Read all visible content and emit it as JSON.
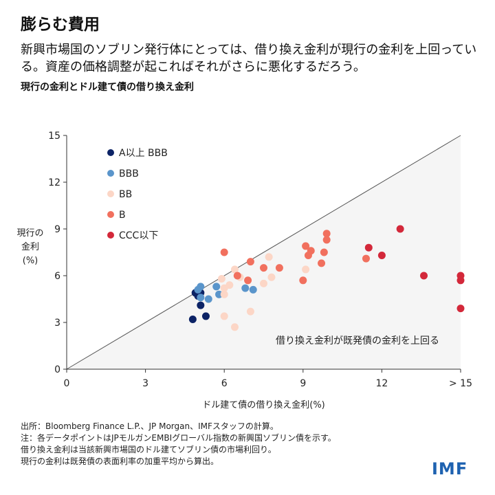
{
  "title": "膨らむ費用",
  "subtitle": "新興市場国のソブリン発行体にとっては、借り換え金利が現行の金利を上回っている。資産の価格調整が起こればそれがさらに悪化するだろう。",
  "notes": [
    "出所：Bloomberg Finance L.P.、JP Morgan、IMFスタッフの計算。",
    "注：各データポイントはJPモルガンEMBIグローバル指数の新興国ソブリン債を示す。",
    "借り換え金利は当該新興市場国のドル建てソブリン債の市場利回り。",
    "現行の金利は既発債の表面利率の加重平均から算出。"
  ],
  "logo": "IMF",
  "chart_data": {
    "type": "scatter",
    "title": "現行の金利とドル建て債の借り換え金利",
    "xlabel": "ドル建て債の借り換え金利(%)",
    "ylabel": [
      "現行の",
      "金利",
      "(%)"
    ],
    "xlim": [
      0,
      15
    ],
    "ylim": [
      0,
      15
    ],
    "xticks": [
      "0",
      "3",
      "6",
      "9",
      "12",
      "> 15"
    ],
    "yticks": [
      "0",
      "3",
      "6",
      "9",
      "12",
      "15"
    ],
    "annotation": "借り換え金利が既発債の金利を上回る",
    "reference_line": "y = x",
    "legend_position": "top-left",
    "series": [
      {
        "name": "A以上 BBB",
        "color": "#0c2366",
        "points": [
          [
            4.8,
            3.2
          ],
          [
            5.3,
            3.4
          ],
          [
            5.1,
            4.1
          ],
          [
            5.0,
            4.7
          ],
          [
            5.1,
            4.9
          ],
          [
            4.9,
            4.9
          ]
        ]
      },
      {
        "name": "BBB",
        "color": "#5a95cb",
        "points": [
          [
            5.1,
            5.3
          ],
          [
            5.0,
            5.1
          ],
          [
            5.1,
            4.6
          ],
          [
            5.4,
            4.5
          ],
          [
            5.7,
            5.3
          ],
          [
            5.8,
            4.8
          ],
          [
            6.8,
            5.2
          ],
          [
            7.1,
            5.1
          ]
        ]
      },
      {
        "name": "BB",
        "color": "#fcd6c6",
        "points": [
          [
            5.9,
            5.8
          ],
          [
            6.2,
            5.4
          ],
          [
            6.0,
            5.2
          ],
          [
            6.0,
            4.8
          ],
          [
            6.4,
            6.4
          ],
          [
            6.6,
            5.9
          ],
          [
            7.7,
            7.2
          ],
          [
            7.8,
            5.9
          ],
          [
            7.5,
            5.5
          ],
          [
            6.0,
            3.4
          ],
          [
            7.0,
            3.7
          ],
          [
            6.4,
            2.7
          ],
          [
            9.1,
            6.4
          ]
        ]
      },
      {
        "name": "B",
        "color": "#f1705e",
        "points": [
          [
            6.0,
            7.5
          ],
          [
            7.0,
            6.9
          ],
          [
            6.5,
            6.0
          ],
          [
            6.9,
            5.7
          ],
          [
            7.5,
            6.5
          ],
          [
            8.1,
            6.5
          ],
          [
            9.1,
            7.9
          ],
          [
            9.0,
            5.7
          ],
          [
            9.3,
            7.6
          ],
          [
            9.2,
            7.3
          ],
          [
            9.8,
            7.5
          ],
          [
            9.7,
            6.8
          ],
          [
            9.9,
            8.7
          ],
          [
            9.9,
            8.3
          ],
          [
            11.4,
            7.1
          ]
        ]
      },
      {
        "name": "CCC以下",
        "color": "#d3283a",
        "points": [
          [
            12.7,
            9.0
          ],
          [
            11.5,
            7.8
          ],
          [
            12.0,
            7.3
          ],
          [
            13.6,
            6.0
          ],
          [
            15,
            6.0
          ],
          [
            15,
            5.7
          ],
          [
            15,
            3.9
          ]
        ]
      }
    ]
  }
}
